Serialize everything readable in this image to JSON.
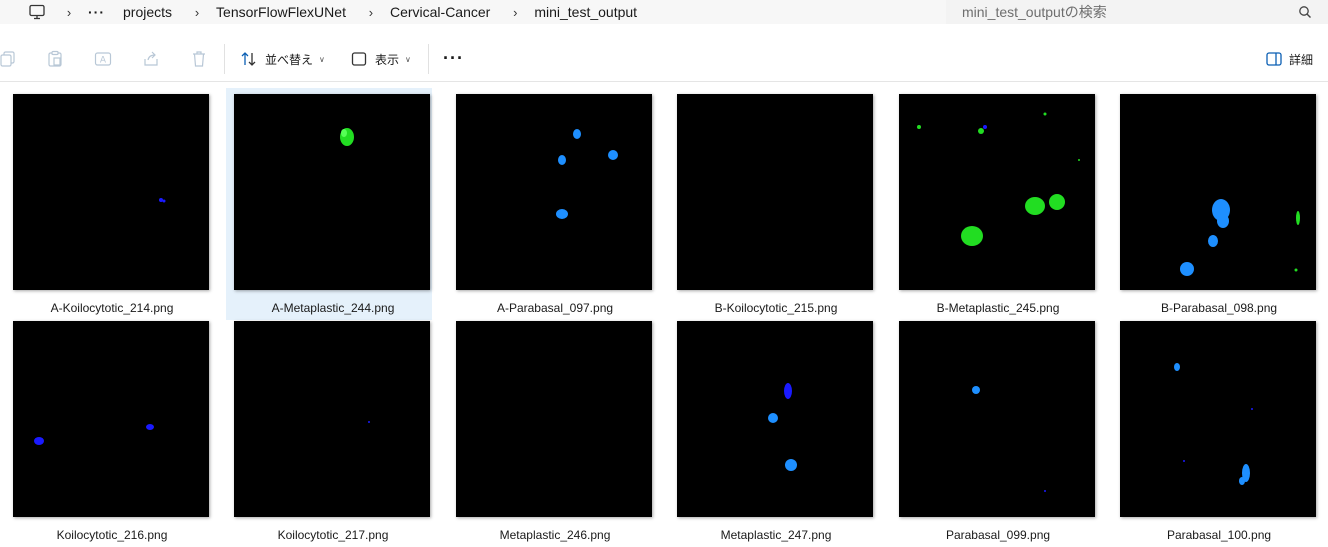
{
  "breadcrumb": {
    "items": [
      "projects",
      "TensorFlowFlexUNet",
      "Cervical-Cancer",
      "mini_test_output"
    ]
  },
  "search": {
    "placeholder": "mini_test_outputの検索"
  },
  "toolbar": {
    "sort_label": "並べ替え",
    "view_label": "表示",
    "details_label": "詳細"
  },
  "files": [
    {
      "name": "A-Koilocytotic_214.png",
      "selected": false
    },
    {
      "name": "A-Metaplastic_244.png",
      "selected": true
    },
    {
      "name": "A-Parabasal_097.png",
      "selected": false
    },
    {
      "name": "B-Koilocytotic_215.png",
      "selected": false
    },
    {
      "name": "B-Metaplastic_245.png",
      "selected": false
    },
    {
      "name": "B-Parabasal_098.png",
      "selected": false
    },
    {
      "name": "Koilocytotic_216.png",
      "selected": false
    },
    {
      "name": "Koilocytotic_217.png",
      "selected": false
    },
    {
      "name": "Metaplastic_246.png",
      "selected": false
    },
    {
      "name": "Metaplastic_247.png",
      "selected": false
    },
    {
      "name": "Parabasal_099.png",
      "selected": false
    },
    {
      "name": "Parabasal_100.png",
      "selected": false
    }
  ],
  "colors": {
    "koilocytotic": "#1a1aff",
    "metaplastic": "#22dd22",
    "parabasal": "#1e8fff",
    "selection": "#e5f1fb"
  }
}
